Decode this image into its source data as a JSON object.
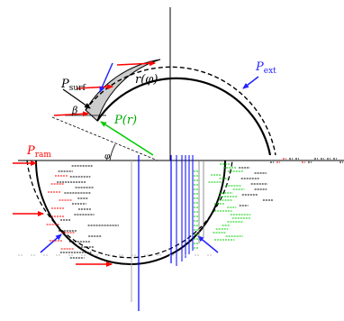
{
  "figure": {
    "labels": {
      "p_surf": {
        "main": "P",
        "sub": "surf"
      },
      "r_phi": "r(φ)",
      "p_ext": {
        "main": "P",
        "sub": "ext"
      },
      "beta": "β",
      "p_r": "P(r)",
      "p_ram": {
        "main": "P",
        "sub": "ram"
      },
      "phi": "φ"
    },
    "colors": {
      "ram_arrow": "#ff0000",
      "ext_arrow": "#2222ff",
      "radial_arrow": "#00cc00",
      "surface_arrow": "#000000",
      "shell_fill": "#cccccc",
      "outline": "#000000",
      "artifact_green": "#00cc00",
      "artifact_red": "#ff0000",
      "artifact_blue": "#0000ff"
    }
  }
}
